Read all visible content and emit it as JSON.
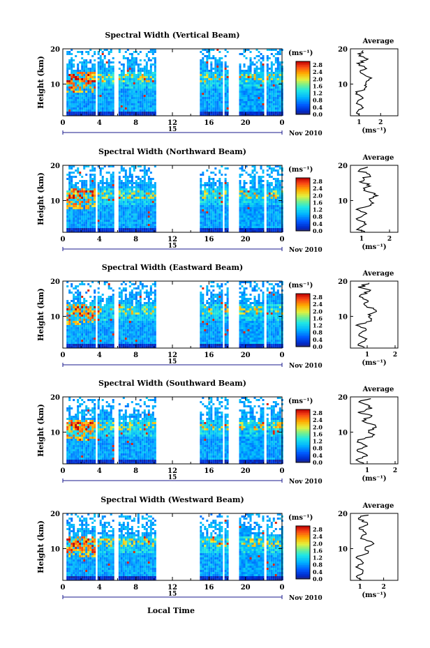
{
  "figure": {
    "xlabel": "Local Time",
    "date_label": "15",
    "month_label": "Nov 2010"
  },
  "chart_data": [
    {
      "type": "heatmap",
      "title": "Spectral Width (Vertical Beam)",
      "ylabel": "Height (km)",
      "x_ticks": [
        "0",
        "4",
        "8",
        "12",
        "16",
        "20",
        "0"
      ],
      "y_ticks": [
        "10",
        "20"
      ],
      "xlim": [
        0,
        24
      ],
      "ylim": [
        1,
        20
      ],
      "colorbar_label": "(ms⁻¹)",
      "colorbar_ticks": [
        "2.8",
        "2.4",
        "2.0",
        "1.6",
        "1.2",
        "0.8",
        "0.4",
        "0.0"
      ],
      "colorbar_range": [
        0,
        3.0
      ],
      "data_segments_hours": [
        [
          0.4,
          3.5
        ],
        [
          3.8,
          5.6
        ],
        [
          6.1,
          10.0
        ],
        [
          15.0,
          17.5
        ],
        [
          17.7,
          18.0
        ],
        [
          19.3,
          22.0
        ],
        [
          22.3,
          24.0
        ]
      ],
      "average": {
        "title": "Average",
        "xlabel": "(ms⁻¹)",
        "x_ticks": [
          "1",
          "2"
        ],
        "xlim": [
          0.6,
          2.8
        ],
        "y_ticks": [
          "10",
          "20"
        ]
      }
    },
    {
      "type": "heatmap",
      "title": "Spectral Width (Northward Beam)",
      "ylabel": "Height (km)",
      "x_ticks": [
        "0",
        "4",
        "8",
        "12",
        "16",
        "20",
        "0"
      ],
      "y_ticks": [
        "10",
        "20"
      ],
      "xlim": [
        0,
        24
      ],
      "ylim": [
        1,
        20
      ],
      "colorbar_label": "(ms⁻¹)",
      "colorbar_ticks": [
        "2.8",
        "2.4",
        "2.0",
        "1.6",
        "1.2",
        "0.8",
        "0.4",
        "0.0"
      ],
      "colorbar_range": [
        0,
        3.0
      ],
      "data_segments_hours": [
        [
          0.4,
          3.5
        ],
        [
          3.8,
          5.6
        ],
        [
          6.1,
          10.0
        ],
        [
          15.0,
          17.5
        ],
        [
          17.7,
          18.0
        ],
        [
          19.3,
          22.0
        ],
        [
          22.3,
          24.0
        ]
      ],
      "average": {
        "title": "Average",
        "xlabel": "(ms⁻¹)",
        "x_ticks": [
          "1",
          "2"
        ],
        "xlim": [
          0.6,
          2.3
        ],
        "y_ticks": [
          "10",
          "20"
        ]
      }
    },
    {
      "type": "heatmap",
      "title": "Spectral Width (Eastward Beam)",
      "ylabel": "Height (km)",
      "x_ticks": [
        "0",
        "4",
        "8",
        "12",
        "16",
        "20",
        "0"
      ],
      "y_ticks": [
        "10",
        "20"
      ],
      "xlim": [
        0,
        24
      ],
      "ylim": [
        1,
        20
      ],
      "colorbar_label": "(ms⁻¹)",
      "colorbar_ticks": [
        "2.8",
        "2.4",
        "2.0",
        "1.6",
        "1.2",
        "0.8",
        "0.4",
        "0.0"
      ],
      "colorbar_range": [
        0,
        3.0
      ],
      "data_segments_hours": [
        [
          0.4,
          3.5
        ],
        [
          3.8,
          5.6
        ],
        [
          6.1,
          10.0
        ],
        [
          15.0,
          17.5
        ],
        [
          17.7,
          18.0
        ],
        [
          19.3,
          22.0
        ],
        [
          22.3,
          24.0
        ]
      ],
      "average": {
        "title": "Average",
        "xlabel": "(ms⁻¹)",
        "x_ticks": [
          "1",
          "2"
        ],
        "xlim": [
          0.4,
          2.1
        ],
        "y_ticks": [
          "10",
          "20"
        ]
      }
    },
    {
      "type": "heatmap",
      "title": "Spectral Width (Southward Beam)",
      "ylabel": "Height (km)",
      "x_ticks": [
        "0",
        "4",
        "8",
        "12",
        "16",
        "20",
        "0"
      ],
      "y_ticks": [
        "10",
        "20"
      ],
      "xlim": [
        0,
        24
      ],
      "ylim": [
        1,
        20
      ],
      "colorbar_label": "(ms⁻¹)",
      "colorbar_ticks": [
        "2.8",
        "2.4",
        "2.0",
        "1.6",
        "1.2",
        "0.8",
        "0.4",
        "0.0"
      ],
      "colorbar_range": [
        0,
        3.0
      ],
      "data_segments_hours": [
        [
          0.4,
          3.5
        ],
        [
          3.8,
          5.6
        ],
        [
          6.1,
          10.0
        ],
        [
          15.0,
          17.5
        ],
        [
          17.7,
          18.0
        ],
        [
          19.3,
          22.0
        ],
        [
          22.3,
          24.0
        ]
      ],
      "average": {
        "title": "Average",
        "xlabel": "(ms⁻¹)",
        "x_ticks": [
          "1",
          "2"
        ],
        "xlim": [
          0.4,
          2.1
        ],
        "y_ticks": [
          "10",
          "20"
        ]
      }
    },
    {
      "type": "heatmap",
      "title": "Spectral Width (Westward Beam)",
      "ylabel": "Height (km)",
      "x_ticks": [
        "0",
        "4",
        "8",
        "12",
        "16",
        "20",
        "0"
      ],
      "y_ticks": [
        "10",
        "20"
      ],
      "xlim": [
        0,
        24
      ],
      "ylim": [
        1,
        20
      ],
      "colorbar_label": "(ms⁻¹)",
      "colorbar_ticks": [
        "2.8",
        "2.4",
        "2.0",
        "1.6",
        "1.2",
        "0.8",
        "0.4",
        "0.0"
      ],
      "colorbar_range": [
        0,
        3.0
      ],
      "data_segments_hours": [
        [
          0.4,
          3.5
        ],
        [
          3.8,
          5.6
        ],
        [
          6.1,
          10.0
        ],
        [
          15.0,
          17.5
        ],
        [
          17.7,
          18.0
        ],
        [
          19.3,
          22.0
        ],
        [
          22.3,
          24.0
        ]
      ],
      "average": {
        "title": "Average",
        "xlabel": "(ms⁻¹)",
        "x_ticks": [
          "1",
          "2"
        ],
        "xlim": [
          0.6,
          2.6
        ],
        "y_ticks": [
          "10",
          "20"
        ]
      }
    }
  ]
}
